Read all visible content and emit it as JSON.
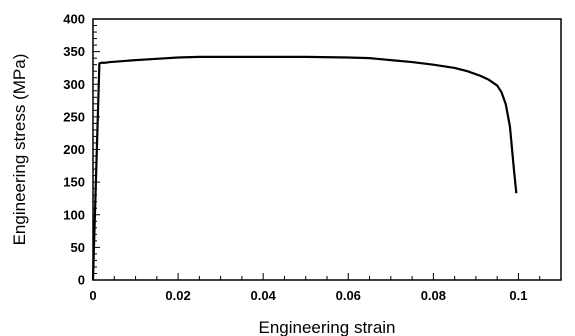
{
  "chart_data": {
    "type": "line",
    "title": "",
    "xlabel": "Engineering strain",
    "ylabel": "Engineering stress (MPa)",
    "xlim": [
      0,
      0.11
    ],
    "ylim": [
      0,
      400
    ],
    "x_ticks": [
      0,
      0.02,
      0.04,
      0.06,
      0.08,
      0.1
    ],
    "x_tick_labels": [
      "0",
      "0.02",
      "0.04",
      "0.06",
      "0.08",
      "0.1"
    ],
    "y_ticks": [
      0,
      50,
      100,
      150,
      200,
      250,
      300,
      350,
      400
    ],
    "y_tick_labels": [
      "0",
      "50",
      "100",
      "150",
      "200",
      "250",
      "300",
      "350",
      "400"
    ],
    "grid": false,
    "legend": "none",
    "line_color": "#000000",
    "series": [
      {
        "x": [
          0,
          0.0015,
          0.002,
          0.003,
          0.004,
          0.006,
          0.01,
          0.015,
          0.02,
          0.025,
          0.03,
          0.04,
          0.05,
          0.06,
          0.065,
          0.07,
          0.075,
          0.08,
          0.085,
          0.088,
          0.091,
          0.093,
          0.095,
          0.096,
          0.097,
          0.098,
          0.0985,
          0.099,
          0.0995
        ],
        "y": [
          0,
          332,
          333,
          333,
          334,
          335,
          337,
          339,
          341,
          342,
          342,
          342,
          342,
          341,
          340,
          337,
          334,
          330,
          325,
          320,
          313,
          307,
          298,
          288,
          270,
          235,
          200,
          165,
          133
        ]
      }
    ]
  }
}
